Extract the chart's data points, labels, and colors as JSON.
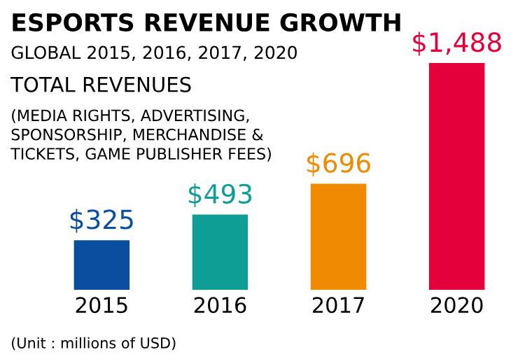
{
  "chart_data": {
    "type": "bar",
    "title": "ESPORTS REVENUE GROWTH",
    "subtitle": "GLOBAL 2015, 2016, 2017, 2020",
    "annotations": [
      "TOTAL REVENUES",
      "(MEDIA RIGHTS, ADVERTISING,\nSPONSORSHIP, MERCHANDISE &\nTICKETS, GAME PUBLISHER FEES)",
      "(Unit : millions of USD)"
    ],
    "categories": [
      "2015",
      "2016",
      "2017",
      "2020"
    ],
    "values": [
      325,
      493,
      696,
      1488
    ],
    "colors": [
      "#0a4ea0",
      "#0e9e96",
      "#f08a00",
      "#e4003a"
    ],
    "value_labels": [
      "$325",
      "$493",
      "$696",
      "$1,488"
    ],
    "tick_labels": "x",
    "grid": false,
    "legend": false
  }
}
